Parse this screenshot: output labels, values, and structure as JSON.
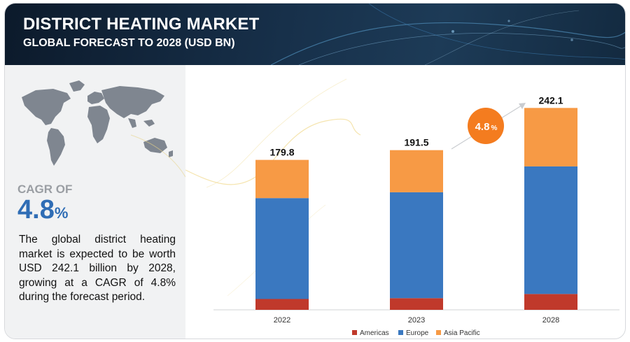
{
  "header": {
    "title": "DISTRICT HEATING MARKET",
    "subtitle": "GLOBAL FORECAST TO 2028 (USD BN)"
  },
  "left_panel": {
    "cagr_label": "CAGR OF",
    "cagr_number": "4.8",
    "cagr_percent": "%",
    "description": "The global district heating market is expected to be worth USD 242.1 billion by 2028, growing at a CAGR of 4.8% during the forecast period."
  },
  "cagr_badge": {
    "number": "4.8",
    "percent": "%",
    "color": "#f47c1f"
  },
  "chart_data": {
    "type": "bar",
    "stacked": true,
    "categories": [
      "2022",
      "2023",
      "2028"
    ],
    "totals": [
      179.8,
      191.5,
      242.1
    ],
    "total_labels": [
      "179.8",
      "191.5",
      "242.1"
    ],
    "series": [
      {
        "name": "Americas",
        "color": "#c0392b",
        "values": [
          13.0,
          14.0,
          19.0
        ]
      },
      {
        "name": "Europe",
        "color": "#3a78c0",
        "values": [
          121.0,
          127.0,
          153.0
        ]
      },
      {
        "name": "Asia Pacific",
        "color": "#f79a45",
        "values": [
          45.8,
          50.5,
          70.1
        ]
      }
    ],
    "ylim": [
      0,
      260
    ],
    "legend_position": "bottom",
    "grid": false
  }
}
